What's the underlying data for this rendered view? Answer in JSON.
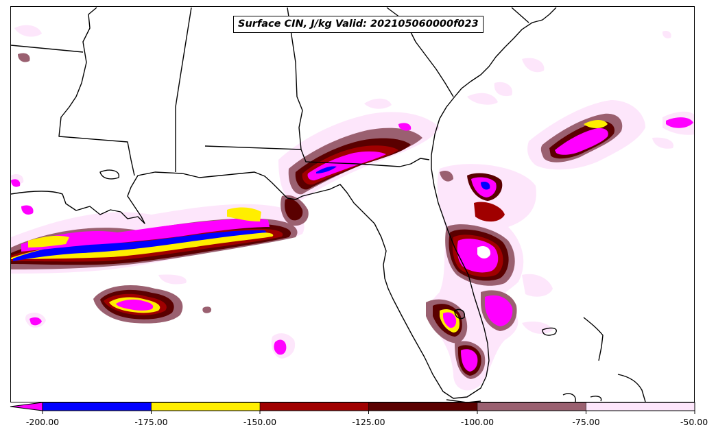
{
  "title": "Surface CIN, J/kg Valid: 202105060000f023",
  "colorbar": {
    "labels": [
      "-200.00",
      "-175.00",
      "-150.00",
      "-125.00",
      "-100.00",
      "-75.00",
      "-50.00"
    ],
    "colors": [
      "#0000ff",
      "#ffee00",
      "#a00000",
      "#5a0000",
      "#9a6070",
      "#fde6fb"
    ],
    "extend_color": "#ff00ff"
  },
  "palette": {
    "magenta": "#ff00ff",
    "blue": "#0000ff",
    "yellow": "#ffee00",
    "red": "#a00000",
    "darkred": "#5a0000",
    "mauve": "#9a6070",
    "pink": "#fde6fb",
    "border": "#000000"
  }
}
